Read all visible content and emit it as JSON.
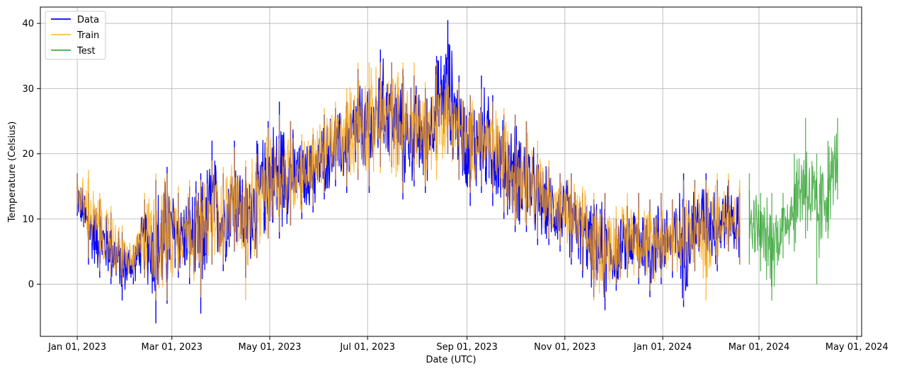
{
  "chart_data": {
    "type": "line",
    "title": "",
    "xlabel": "Date (UTC)",
    "ylabel": "Temperature (Celsius)",
    "x_ticks": [
      {
        "date": "2023-01-01",
        "label": "Jan 01, 2023"
      },
      {
        "date": "2023-03-01",
        "label": "Mar 01, 2023"
      },
      {
        "date": "2023-05-01",
        "label": "May 01, 2023"
      },
      {
        "date": "2023-07-01",
        "label": "Jul 01, 2023"
      },
      {
        "date": "2023-09-01",
        "label": "Sep 01, 2023"
      },
      {
        "date": "2023-11-01",
        "label": "Nov 01, 2023"
      },
      {
        "date": "2024-01-01",
        "label": "Jan 01, 2024"
      },
      {
        "date": "2024-03-01",
        "label": "Mar 01, 2024"
      },
      {
        "date": "2024-05-01",
        "label": "May 01, 2024"
      }
    ],
    "y_ticks": [
      0,
      10,
      20,
      30,
      40
    ],
    "xlim": [
      "2022-12-09",
      "2024-05-04"
    ],
    "ylim": [
      -8,
      42.5
    ],
    "grid": true,
    "legend": "top-left",
    "legend_entries": [
      "Data",
      "Train",
      "Test"
    ],
    "series": [
      {
        "name": "Data",
        "color": "#0000ff",
        "points": [
          {
            "x": "2023-01-01",
            "lo": 10.5,
            "hi": 17
          },
          {
            "x": "2023-01-08",
            "lo": 3,
            "hi": 14
          },
          {
            "x": "2023-01-15",
            "lo": 1,
            "hi": 13
          },
          {
            "x": "2023-01-22",
            "lo": 0,
            "hi": 11
          },
          {
            "x": "2023-01-29",
            "lo": -2.5,
            "hi": 8
          },
          {
            "x": "2023-02-05",
            "lo": 0,
            "hi": 6
          },
          {
            "x": "2023-02-12",
            "lo": 1,
            "hi": 13
          },
          {
            "x": "2023-02-19",
            "lo": -6,
            "hi": 16
          },
          {
            "x": "2023-02-26",
            "lo": -3,
            "hi": 18
          },
          {
            "x": "2023-03-05",
            "lo": 1,
            "hi": 14
          },
          {
            "x": "2023-03-12",
            "lo": 0,
            "hi": 15
          },
          {
            "x": "2023-03-19",
            "lo": -4.5,
            "hi": 17
          },
          {
            "x": "2023-03-26",
            "lo": 3,
            "hi": 22
          },
          {
            "x": "2023-04-02",
            "lo": 2,
            "hi": 17
          },
          {
            "x": "2023-04-09",
            "lo": 5,
            "hi": 22
          },
          {
            "x": "2023-04-16",
            "lo": 1,
            "hi": 18
          },
          {
            "x": "2023-04-23",
            "lo": 4,
            "hi": 22
          },
          {
            "x": "2023-04-30",
            "lo": 7,
            "hi": 25
          },
          {
            "x": "2023-05-07",
            "lo": 7,
            "hi": 28
          },
          {
            "x": "2023-05-14",
            "lo": 9,
            "hi": 25
          },
          {
            "x": "2023-05-21",
            "lo": 10,
            "hi": 22
          },
          {
            "x": "2023-05-28",
            "lo": 11,
            "hi": 23
          },
          {
            "x": "2023-06-04",
            "lo": 13,
            "hi": 26
          },
          {
            "x": "2023-06-11",
            "lo": 15,
            "hi": 27
          },
          {
            "x": "2023-06-18",
            "lo": 14,
            "hi": 28
          },
          {
            "x": "2023-06-25",
            "lo": 16,
            "hi": 33
          },
          {
            "x": "2023-07-02",
            "lo": 14,
            "hi": 30
          },
          {
            "x": "2023-07-09",
            "lo": 18,
            "hi": 36
          },
          {
            "x": "2023-07-16",
            "lo": 18,
            "hi": 34
          },
          {
            "x": "2023-07-23",
            "lo": 13,
            "hi": 33
          },
          {
            "x": "2023-07-30",
            "lo": 15,
            "hi": 32
          },
          {
            "x": "2023-08-06",
            "lo": 14,
            "hi": 30
          },
          {
            "x": "2023-08-13",
            "lo": 20,
            "hi": 35
          },
          {
            "x": "2023-08-20",
            "lo": 20,
            "hi": 40.5
          },
          {
            "x": "2023-08-27",
            "lo": 16,
            "hi": 32
          },
          {
            "x": "2023-09-03",
            "lo": 12,
            "hi": 29
          },
          {
            "x": "2023-09-10",
            "lo": 14,
            "hi": 32
          },
          {
            "x": "2023-09-17",
            "lo": 12,
            "hi": 29
          },
          {
            "x": "2023-09-24",
            "lo": 10,
            "hi": 26
          },
          {
            "x": "2023-10-01",
            "lo": 8,
            "hi": 26
          },
          {
            "x": "2023-10-08",
            "lo": 8,
            "hi": 25
          },
          {
            "x": "2023-10-15",
            "lo": 6,
            "hi": 20
          },
          {
            "x": "2023-10-22",
            "lo": 6,
            "hi": 18
          },
          {
            "x": "2023-10-29",
            "lo": 5,
            "hi": 17
          },
          {
            "x": "2023-11-05",
            "lo": 3,
            "hi": 17
          },
          {
            "x": "2023-11-12",
            "lo": 1,
            "hi": 14
          },
          {
            "x": "2023-11-19",
            "lo": -2,
            "hi": 13
          },
          {
            "x": "2023-11-26",
            "lo": -4,
            "hi": 14
          },
          {
            "x": "2023-12-03",
            "lo": -1,
            "hi": 10
          },
          {
            "x": "2023-12-10",
            "lo": 1,
            "hi": 12
          },
          {
            "x": "2023-12-17",
            "lo": 0,
            "hi": 14
          },
          {
            "x": "2023-12-24",
            "lo": -2,
            "hi": 13
          },
          {
            "x": "2023-12-31",
            "lo": 0,
            "hi": 14
          },
          {
            "x": "2024-01-07",
            "lo": 1,
            "hi": 13
          },
          {
            "x": "2024-01-14",
            "lo": -3.5,
            "hi": 17
          },
          {
            "x": "2024-01-21",
            "lo": 2,
            "hi": 16
          },
          {
            "x": "2024-01-28",
            "lo": 3,
            "hi": 17
          },
          {
            "x": "2024-02-04",
            "lo": 2,
            "hi": 16
          },
          {
            "x": "2024-02-11",
            "lo": 5,
            "hi": 16
          },
          {
            "x": "2024-02-18",
            "lo": 3,
            "hi": 14
          }
        ]
      },
      {
        "name": "Train",
        "color": "#ffa500",
        "points": [
          {
            "x": "2023-01-01",
            "lo": 11,
            "hi": 17
          },
          {
            "x": "2023-01-08",
            "lo": 4,
            "hi": 17.5
          },
          {
            "x": "2023-01-15",
            "lo": 2,
            "hi": 14
          },
          {
            "x": "2023-01-22",
            "lo": 1,
            "hi": 12
          },
          {
            "x": "2023-01-29",
            "lo": 0,
            "hi": 9
          },
          {
            "x": "2023-02-05",
            "lo": 1,
            "hi": 6
          },
          {
            "x": "2023-02-12",
            "lo": 1,
            "hi": 14
          },
          {
            "x": "2023-02-19",
            "lo": -2.5,
            "hi": 17
          },
          {
            "x": "2023-02-26",
            "lo": -2.5,
            "hi": 17
          },
          {
            "x": "2023-03-05",
            "lo": 2,
            "hi": 15
          },
          {
            "x": "2023-03-12",
            "lo": 1,
            "hi": 16
          },
          {
            "x": "2023-03-19",
            "lo": -2,
            "hi": 16
          },
          {
            "x": "2023-03-26",
            "lo": 3,
            "hi": 19
          },
          {
            "x": "2023-04-02",
            "lo": 3,
            "hi": 18
          },
          {
            "x": "2023-04-09",
            "lo": 5,
            "hi": 21
          },
          {
            "x": "2023-04-16",
            "lo": -2.5,
            "hi": 19
          },
          {
            "x": "2023-04-23",
            "lo": 4,
            "hi": 20
          },
          {
            "x": "2023-04-30",
            "lo": 7,
            "hi": 24
          },
          {
            "x": "2023-05-07",
            "lo": 8,
            "hi": 26
          },
          {
            "x": "2023-05-14",
            "lo": 9,
            "hi": 25
          },
          {
            "x": "2023-05-21",
            "lo": 11,
            "hi": 23
          },
          {
            "x": "2023-05-28",
            "lo": 12,
            "hi": 24
          },
          {
            "x": "2023-06-04",
            "lo": 14,
            "hi": 27
          },
          {
            "x": "2023-06-11",
            "lo": 16,
            "hi": 28
          },
          {
            "x": "2023-06-18",
            "lo": 15,
            "hi": 30
          },
          {
            "x": "2023-06-25",
            "lo": 16,
            "hi": 34
          },
          {
            "x": "2023-07-02",
            "lo": 15,
            "hi": 34
          },
          {
            "x": "2023-07-09",
            "lo": 17,
            "hi": 34
          },
          {
            "x": "2023-07-16",
            "lo": 17,
            "hi": 34
          },
          {
            "x": "2023-07-23",
            "lo": 14,
            "hi": 34
          },
          {
            "x": "2023-07-30",
            "lo": 16,
            "hi": 34
          },
          {
            "x": "2023-08-06",
            "lo": 15,
            "hi": 31
          },
          {
            "x": "2023-08-13",
            "lo": 16,
            "hi": 34
          },
          {
            "x": "2023-08-20",
            "lo": 20,
            "hi": 34.5
          },
          {
            "x": "2023-08-27",
            "lo": 16,
            "hi": 31
          },
          {
            "x": "2023-09-03",
            "lo": 14,
            "hi": 29
          },
          {
            "x": "2023-09-10",
            "lo": 15,
            "hi": 30
          },
          {
            "x": "2023-09-17",
            "lo": 14,
            "hi": 28
          },
          {
            "x": "2023-09-24",
            "lo": 11,
            "hi": 27
          },
          {
            "x": "2023-10-01",
            "lo": 9,
            "hi": 26
          },
          {
            "x": "2023-10-08",
            "lo": 9,
            "hi": 25
          },
          {
            "x": "2023-10-15",
            "lo": 7,
            "hi": 22
          },
          {
            "x": "2023-10-22",
            "lo": 7,
            "hi": 19
          },
          {
            "x": "2023-10-29",
            "lo": 6,
            "hi": 17
          },
          {
            "x": "2023-11-05",
            "lo": 4,
            "hi": 17
          },
          {
            "x": "2023-11-12",
            "lo": 2,
            "hi": 15
          },
          {
            "x": "2023-11-19",
            "lo": -2.5,
            "hi": 14
          },
          {
            "x": "2023-11-26",
            "lo": -2,
            "hi": 14
          },
          {
            "x": "2023-12-03",
            "lo": 0,
            "hi": 12
          },
          {
            "x": "2023-12-10",
            "lo": 1,
            "hi": 14
          },
          {
            "x": "2023-12-17",
            "lo": 1,
            "hi": 14
          },
          {
            "x": "2023-12-24",
            "lo": -1,
            "hi": 13
          },
          {
            "x": "2023-12-31",
            "lo": 1,
            "hi": 14
          },
          {
            "x": "2024-01-07",
            "lo": 2,
            "hi": 13
          },
          {
            "x": "2024-01-14",
            "lo": -2.5,
            "hi": 16
          },
          {
            "x": "2024-01-21",
            "lo": 2,
            "hi": 16
          },
          {
            "x": "2024-01-28",
            "lo": -2.5,
            "hi": 16
          },
          {
            "x": "2024-02-04",
            "lo": 3,
            "hi": 17
          },
          {
            "x": "2024-02-11",
            "lo": 5,
            "hi": 17
          },
          {
            "x": "2024-02-18",
            "lo": 3,
            "hi": 16
          }
        ]
      },
      {
        "name": "Test",
        "color": "#2ca02c",
        "points": [
          {
            "x": "2024-02-24",
            "lo": 3,
            "hi": 17
          },
          {
            "x": "2024-03-02",
            "lo": 2,
            "hi": 14
          },
          {
            "x": "2024-03-09",
            "lo": -2.5,
            "hi": 14
          },
          {
            "x": "2024-03-16",
            "lo": 4,
            "hi": 14
          },
          {
            "x": "2024-03-23",
            "lo": 5,
            "hi": 20
          },
          {
            "x": "2024-03-30",
            "lo": 7,
            "hi": 25.5
          },
          {
            "x": "2024-04-06",
            "lo": 0,
            "hi": 20
          },
          {
            "x": "2024-04-13",
            "lo": 7,
            "hi": 22
          },
          {
            "x": "2024-04-19",
            "lo": 13,
            "hi": 25.5
          }
        ]
      }
    ]
  }
}
